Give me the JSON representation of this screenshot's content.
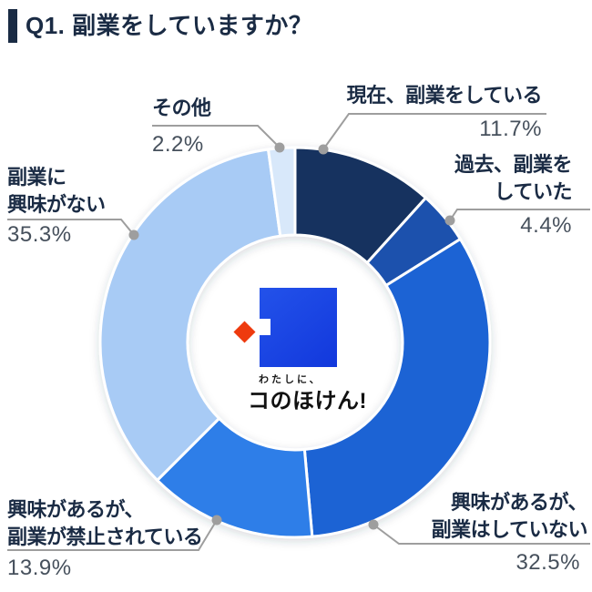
{
  "header": {
    "title": "Q1. 副業をしていますか？"
  },
  "chart_data": {
    "type": "pie",
    "subtype": "donut",
    "title": "Q1. 副業をしていますか？",
    "unit": "%",
    "start_angle_deg": 0,
    "direction": "clockwise-from-top",
    "segments": [
      {
        "label": "現在、副業をしている",
        "label_lines": [
          "現在、副業をしている"
        ],
        "value": 11.7,
        "pct_text": "11.7%",
        "color": "#15325e"
      },
      {
        "label": "過去、副業をしていた",
        "label_lines": [
          "過去、副業を",
          "していた"
        ],
        "value": 4.4,
        "pct_text": "4.4%",
        "color": "#1b51ad"
      },
      {
        "label": "興味があるが、副業はしていない",
        "label_lines": [
          "興味があるが、",
          "副業はしていない"
        ],
        "value": 32.5,
        "pct_text": "32.5%",
        "color": "#1a63d4"
      },
      {
        "label": "興味があるが、副業が禁止されている",
        "label_lines": [
          "興味があるが、",
          "副業が禁止されている"
        ],
        "value": 13.9,
        "pct_text": "13.9%",
        "color": "#2f7ee8"
      },
      {
        "label": "副業に興味がない",
        "label_lines": [
          "副業に",
          "興味がない"
        ],
        "value": 35.3,
        "pct_text": "35.3%",
        "color": "#a8cbf5"
      },
      {
        "label": "その他",
        "label_lines": [
          "その他"
        ],
        "value": 2.2,
        "pct_text": "2.2%",
        "color": "#d8e8fa"
      }
    ],
    "center_logo": {
      "tagline": "わたしに、",
      "brand": "コのほけん!",
      "square_color_start": "#2352ea",
      "square_color_end": "#1238dc",
      "diamond_color": "#ee3a0e"
    },
    "colors": {
      "title_text": "#1a2b44",
      "label_text": "#1a2b44",
      "pct_text": "#46505c",
      "leader_line": "#9e9e9e",
      "leader_dot": "#9e9e9e",
      "segment_gap": "#ffffff"
    }
  }
}
